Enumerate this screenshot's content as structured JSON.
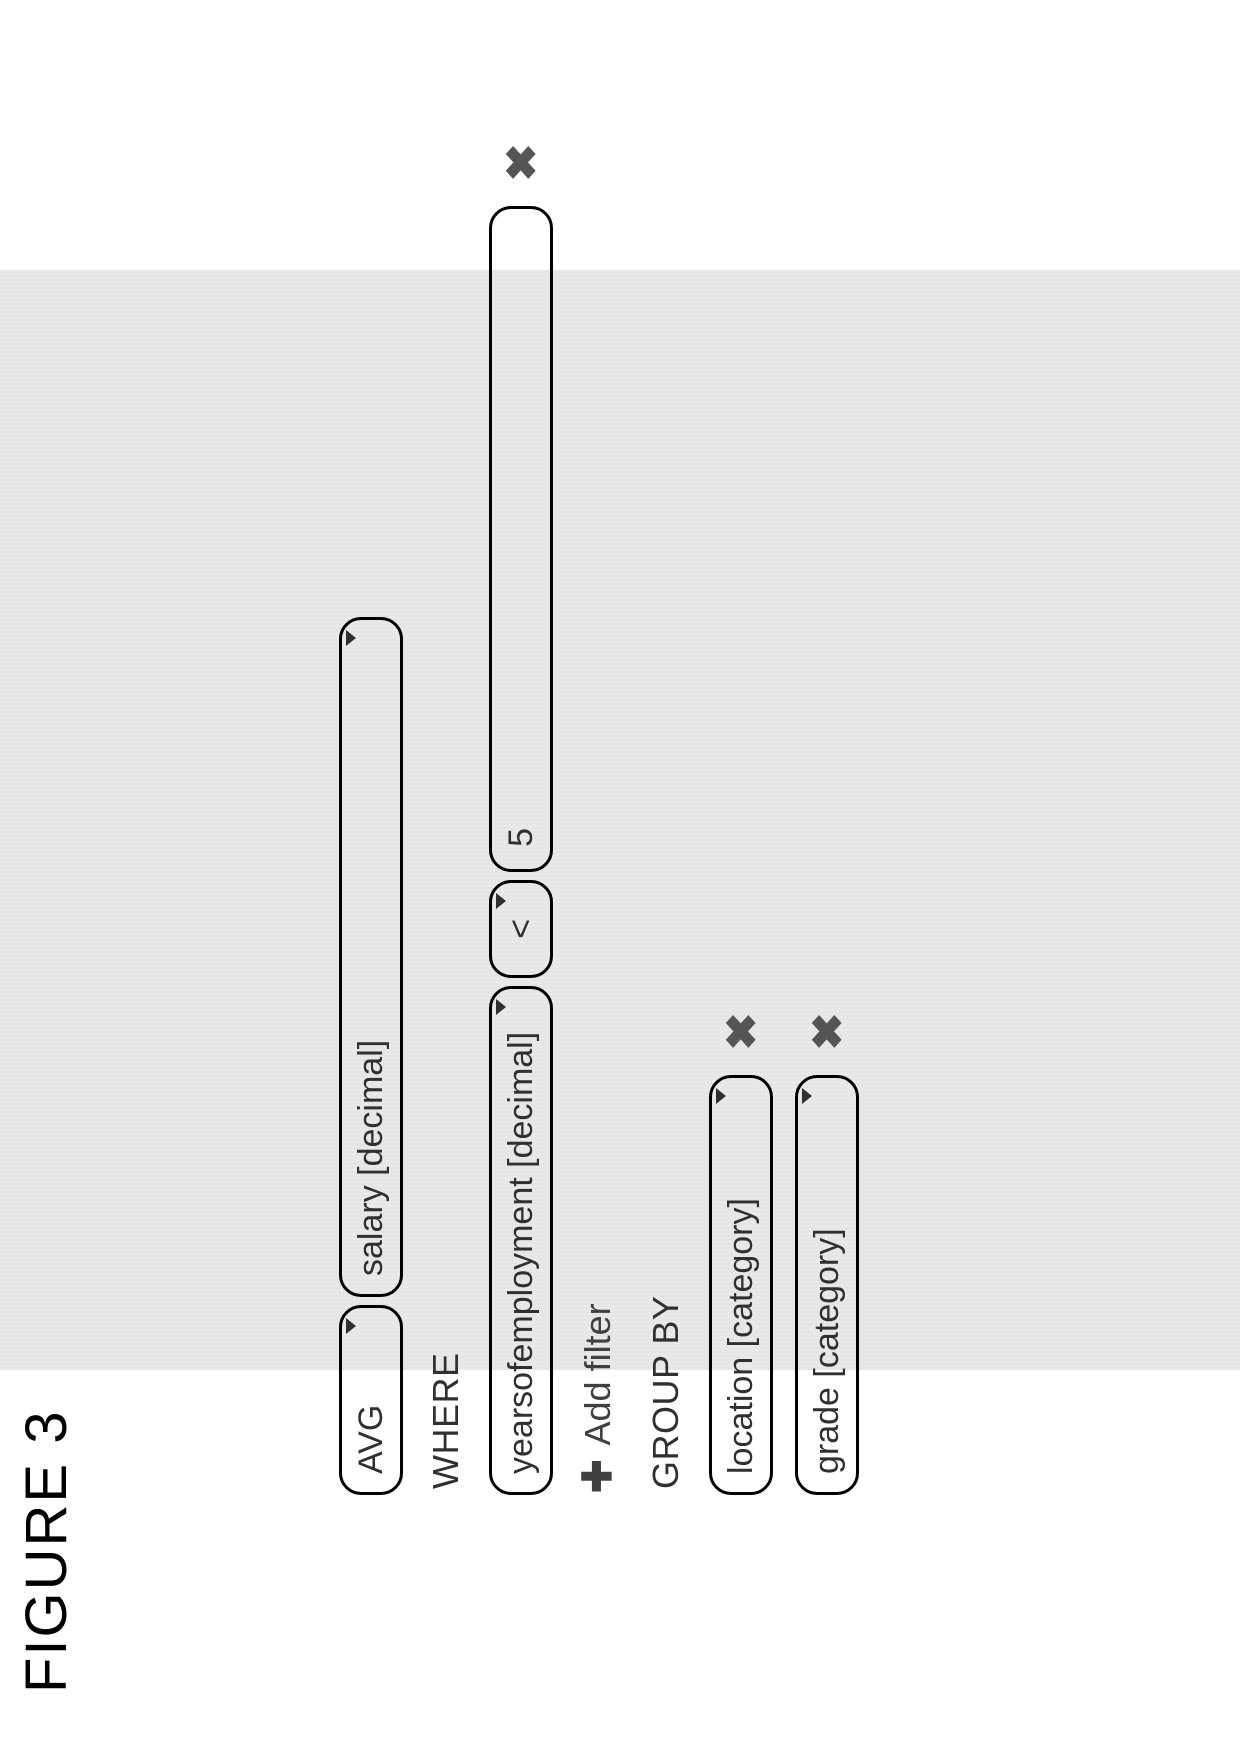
{
  "colors": {
    "canvas_bg": "#e8e8e8",
    "pill_border": "#000000",
    "text": "#303030",
    "icon": "#555555"
  },
  "aggregate": {
    "function": "AVG",
    "column": "salary [decimal]"
  },
  "sections": {
    "where_label": "WHERE",
    "groupby_label": "GROUP BY"
  },
  "filter": {
    "column": "yearsofemployment [decimal]",
    "operator": "<",
    "value": "5"
  },
  "add_filter_label": "Add filter",
  "groupby": [
    {
      "column": "location [category]"
    },
    {
      "column": "grade [category]"
    }
  ],
  "figure_label": "FIGURE 3"
}
